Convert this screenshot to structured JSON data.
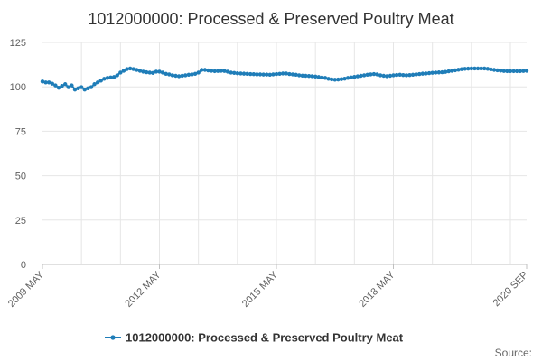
{
  "chart_data": {
    "type": "line",
    "title": "1012000000: Processed & Preserved Poultry Meat",
    "xlabel": "",
    "ylabel": "",
    "ylim": [
      0,
      125
    ],
    "y_ticks": [
      0,
      25,
      50,
      75,
      100,
      125
    ],
    "x_ticks": [
      "2009 MAY",
      "2012 MAY",
      "2015 MAY",
      "2018 MAY",
      "2020 SEP"
    ],
    "legend_position": "bottom-center",
    "grid": true,
    "source_label": "Source:",
    "color": "#1f7db8",
    "series": [
      {
        "name": "1012000000: Processed & Preserved Poultry Meat",
        "start": "2009-05",
        "frequency": "monthly",
        "values": [
          103,
          102.5,
          102.5,
          101.8,
          100.8,
          99.5,
          100.5,
          101.5,
          99.8,
          100.8,
          98.5,
          99.2,
          99.8,
          98.5,
          99.2,
          99.8,
          101.5,
          102.5,
          103.5,
          104.5,
          105,
          105.3,
          105.5,
          106.5,
          108,
          109,
          110,
          110.3,
          110,
          109.5,
          109,
          108.5,
          108.2,
          108,
          107.8,
          108.5,
          108.5,
          108,
          107.3,
          107,
          106.5,
          106.2,
          106,
          106.2,
          106.5,
          106.8,
          107,
          107.3,
          108,
          109.5,
          109.5,
          109.2,
          109,
          108.8,
          108.9,
          109,
          108.9,
          108.5,
          108,
          107.8,
          107.6,
          107.5,
          107.4,
          107.3,
          107.2,
          107.1,
          107,
          107,
          106.9,
          106.9,
          106.8,
          107,
          107.2,
          107.3,
          107.5,
          107.5,
          107.2,
          107,
          106.8,
          106.5,
          106.3,
          106.2,
          106.1,
          106,
          105.8,
          105.5,
          105.2,
          105,
          104.5,
          104.2,
          104,
          104.1,
          104.3,
          104.6,
          105,
          105.3,
          105.6,
          105.9,
          106.2,
          106.5,
          106.8,
          107,
          107.2,
          107,
          106.5,
          106.2,
          106,
          106.2,
          106.5,
          106.7,
          106.8,
          106.6,
          106.5,
          106.6,
          106.8,
          107,
          107.2,
          107.4,
          107.5,
          107.7,
          107.9,
          108,
          108.1,
          108.2,
          108.4,
          108.7,
          109,
          109.3,
          109.6,
          109.9,
          110.1,
          110.2,
          110.3,
          110.3,
          110.3,
          110.3,
          110.3,
          110.1,
          109.8,
          109.5,
          109.3,
          109.1,
          108.9,
          108.8,
          108.8,
          108.8,
          108.8,
          108.8,
          108.9,
          109
        ]
      }
    ]
  }
}
